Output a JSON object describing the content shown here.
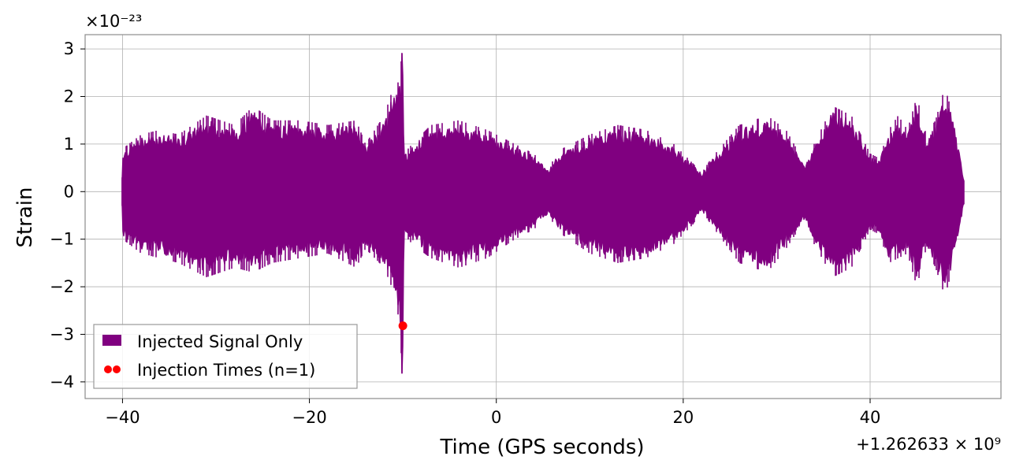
{
  "chart_data": {
    "type": "line",
    "xlabel": "Time (GPS seconds)",
    "ylabel": "Strain",
    "x_offset_label": "+1.262633 × 10⁹",
    "y_scale_label": "×10⁻²³",
    "xlim": [
      -44,
      54
    ],
    "ylim": [
      -4.35,
      3.3
    ],
    "x_ticks": [
      -40,
      -20,
      0,
      20,
      40
    ],
    "x_tick_labels": [
      "−40",
      "−20",
      "0",
      "20",
      "40"
    ],
    "y_ticks": [
      3,
      2,
      1,
      0,
      -1,
      -2,
      -3,
      -4
    ],
    "y_tick_labels": [
      "3",
      "2",
      "1",
      "0",
      "−1",
      "−2",
      "−3",
      "−4"
    ],
    "grid": true,
    "legend_position": "lower-left",
    "series": [
      {
        "name": "Injected Signal Only",
        "color": "#800080",
        "x_range": [
          -40,
          50
        ],
        "envelope": [
          {
            "x": -40.0,
            "hi": 0.9,
            "lo": -1.0
          },
          {
            "x": -38.0,
            "hi": 1.2,
            "lo": -1.3
          },
          {
            "x": -36.0,
            "hi": 1.3,
            "lo": -1.4
          },
          {
            "x": -34.0,
            "hi": 1.2,
            "lo": -1.5
          },
          {
            "x": -31.0,
            "hi": 1.6,
            "lo": -1.8
          },
          {
            "x": -28.0,
            "hi": 1.4,
            "lo": -1.6
          },
          {
            "x": -26.0,
            "hi": 1.8,
            "lo": -1.7
          },
          {
            "x": -24.0,
            "hi": 1.5,
            "lo": -1.5
          },
          {
            "x": -21.0,
            "hi": 1.5,
            "lo": -1.4
          },
          {
            "x": -18.0,
            "hi": 1.4,
            "lo": -1.3
          },
          {
            "x": -15.0,
            "hi": 1.5,
            "lo": -1.6
          },
          {
            "x": -14.0,
            "hi": 1.0,
            "lo": -1.2
          },
          {
            "x": -13.0,
            "hi": 1.3,
            "lo": -1.4
          },
          {
            "x": -12.0,
            "hi": 1.6,
            "lo": -1.6
          },
          {
            "x": -11.0,
            "hi": 2.2,
            "lo": -2.1
          },
          {
            "x": -10.5,
            "hi": 2.3,
            "lo": -2.6
          },
          {
            "x": -10.2,
            "hi": 2.7,
            "lo": -3.3
          },
          {
            "x": -10.05,
            "hi": 3.0,
            "lo": -4.05
          },
          {
            "x": -9.9,
            "hi": 0.8,
            "lo": -0.9
          },
          {
            "x": -9.0,
            "hi": 1.0,
            "lo": -1.1
          },
          {
            "x": -7.0,
            "hi": 1.4,
            "lo": -1.4
          },
          {
            "x": -4.0,
            "hi": 1.5,
            "lo": -1.6
          },
          {
            "x": -1.0,
            "hi": 1.3,
            "lo": -1.4
          },
          {
            "x": 2.0,
            "hi": 1.0,
            "lo": -1.0
          },
          {
            "x": 4.0,
            "hi": 0.8,
            "lo": -0.8
          },
          {
            "x": 5.5,
            "hi": 0.5,
            "lo": -0.5
          },
          {
            "x": 7.0,
            "hi": 0.9,
            "lo": -0.9
          },
          {
            "x": 10.0,
            "hi": 1.2,
            "lo": -1.3
          },
          {
            "x": 13.0,
            "hi": 1.4,
            "lo": -1.5
          },
          {
            "x": 16.0,
            "hi": 1.3,
            "lo": -1.4
          },
          {
            "x": 19.0,
            "hi": 1.0,
            "lo": -1.1
          },
          {
            "x": 21.0,
            "hi": 0.6,
            "lo": -0.7
          },
          {
            "x": 22.0,
            "hi": 0.4,
            "lo": -0.4
          },
          {
            "x": 23.0,
            "hi": 0.7,
            "lo": -0.7
          },
          {
            "x": 26.0,
            "hi": 1.4,
            "lo": -1.5
          },
          {
            "x": 29.0,
            "hi": 1.6,
            "lo": -1.7
          },
          {
            "x": 31.0,
            "hi": 1.3,
            "lo": -1.2
          },
          {
            "x": 33.0,
            "hi": 0.6,
            "lo": -0.6
          },
          {
            "x": 34.0,
            "hi": 1.0,
            "lo": -1.1
          },
          {
            "x": 36.0,
            "hi": 1.8,
            "lo": -1.8
          },
          {
            "x": 38.0,
            "hi": 1.6,
            "lo": -1.6
          },
          {
            "x": 40.0,
            "hi": 0.8,
            "lo": -0.8
          },
          {
            "x": 41.0,
            "hi": 0.7,
            "lo": -0.9
          },
          {
            "x": 42.0,
            "hi": 1.3,
            "lo": -1.5
          },
          {
            "x": 43.0,
            "hi": 1.6,
            "lo": -1.4
          },
          {
            "x": 44.0,
            "hi": 1.3,
            "lo": -1.3
          },
          {
            "x": 45.0,
            "hi": 2.0,
            "lo": -2.0
          },
          {
            "x": 46.0,
            "hi": 1.2,
            "lo": -1.2
          },
          {
            "x": 47.0,
            "hi": 1.5,
            "lo": -1.6
          },
          {
            "x": 48.0,
            "hi": 2.2,
            "lo": -2.2
          },
          {
            "x": 49.0,
            "hi": 1.5,
            "lo": -1.5
          },
          {
            "x": 50.0,
            "hi": 0.3,
            "lo": -0.3
          }
        ]
      },
      {
        "name": "Injection Times (n=1)",
        "type": "scatter",
        "color": "#ff0000",
        "x": [
          -10.0
        ],
        "y": [
          -2.82
        ]
      }
    ]
  }
}
